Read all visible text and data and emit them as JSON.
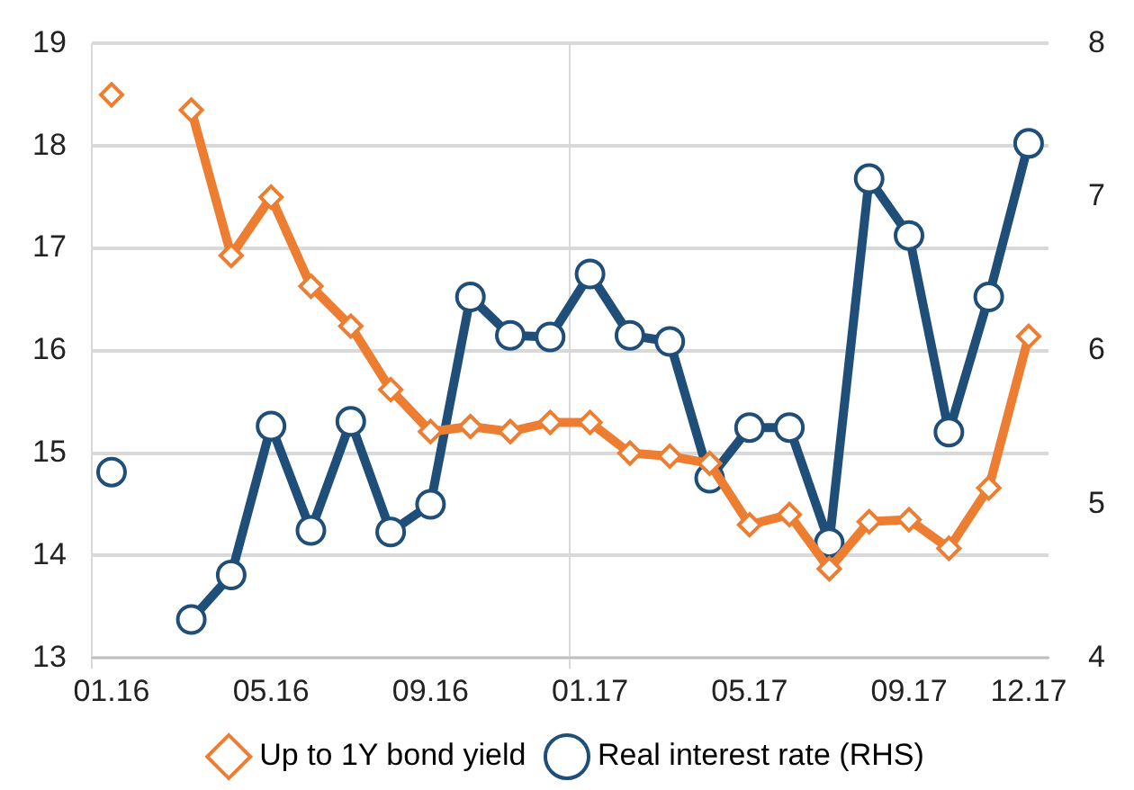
{
  "chart_data": {
    "type": "line",
    "categories": [
      "01.16",
      null,
      null,
      null,
      "05.16",
      null,
      null,
      null,
      "09.16",
      null,
      null,
      null,
      "01.17",
      null,
      null,
      null,
      "05.17",
      null,
      null,
      null,
      "09.17",
      null,
      null,
      "12.17"
    ],
    "series": [
      {
        "name": "Up to 1Y bond yield",
        "color": "#ed7d31",
        "marker": "diamond",
        "values": [
          18.5,
          null,
          18.35,
          16.93,
          17.5,
          16.63,
          16.24,
          15.62,
          15.21,
          15.26,
          15.21,
          15.3,
          15.3,
          15.0,
          14.97,
          14.9,
          14.3,
          14.4,
          13.87,
          14.33,
          14.35,
          14.07,
          14.66,
          16.14
        ]
      },
      {
        "name": "Real interest rate (RHS)",
        "color": "#1f4e79",
        "marker": "circle",
        "axis": "y2",
        "values": [
          5.21,
          null,
          4.25,
          4.54,
          5.51,
          4.83,
          5.54,
          4.82,
          5.0,
          6.35,
          6.1,
          6.09,
          6.5,
          6.1,
          6.06,
          5.17,
          5.5,
          5.5,
          4.75,
          7.12,
          6.75,
          5.47,
          6.35,
          7.35
        ]
      }
    ],
    "ylim": [
      13,
      19
    ],
    "yticks": [
      13,
      14,
      15,
      16,
      17,
      18,
      19
    ],
    "y2lim": [
      4,
      8
    ],
    "y2ticks": [
      4,
      5,
      6,
      7,
      8
    ],
    "grid": true,
    "legend": "bottom",
    "line_style": "solid"
  }
}
